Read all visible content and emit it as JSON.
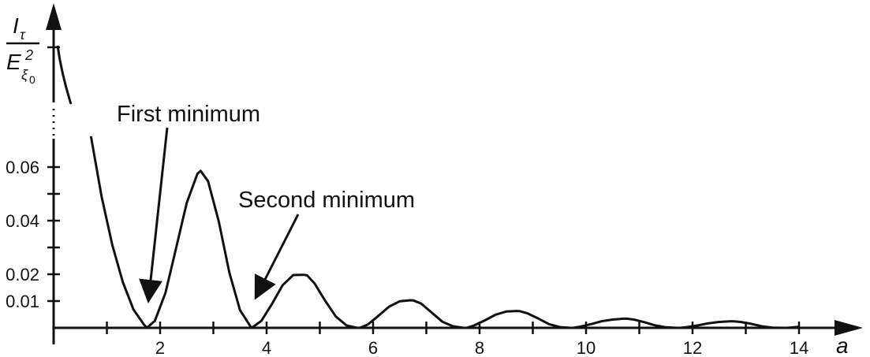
{
  "chart_data": {
    "type": "line",
    "xlabel": "a",
    "ylabel": {
      "numerator": "I",
      "numerator_sub": "τ",
      "denominator": "E",
      "denominator_sup": "2",
      "denominator_sub": "ξ",
      "denominator_sub_sub": "0"
    },
    "xlim": [
      0,
      14.4
    ],
    "ylim": [
      0,
      0.07
    ],
    "axis_break": true,
    "x_ticks": [
      1,
      2,
      3,
      4,
      5,
      6,
      7,
      8,
      9,
      10,
      11,
      12,
      13,
      14
    ],
    "x_tick_labels": [
      "2",
      "4",
      "6",
      "8",
      "10",
      "12",
      "14"
    ],
    "x_tick_label_values": [
      2,
      4,
      6,
      8,
      10,
      12,
      14
    ],
    "y_ticks": [
      0.01,
      0.02,
      0.03,
      0.04,
      0.05,
      0.06
    ],
    "y_tick_labels": [
      "0.06",
      "0.04",
      "0.02",
      "0.01"
    ],
    "y_tick_label_values": [
      0.06,
      0.04,
      0.02,
      0.01
    ],
    "grid": false,
    "series": [
      {
        "x": [
          0.7,
          0.9,
          1.1,
          1.3,
          1.5,
          1.7,
          1.75,
          1.9,
          2.1,
          2.3,
          2.5,
          2.7,
          2.76,
          2.9,
          3.1,
          3.3,
          3.5,
          3.7,
          3.72,
          3.9,
          4.1,
          4.3,
          4.5,
          4.7,
          4.76,
          4.9,
          5.1,
          5.3,
          5.5,
          5.7,
          5.75,
          5.9,
          6.1,
          6.3,
          6.5,
          6.7,
          6.76,
          6.9,
          7.1,
          7.3,
          7.5,
          7.7,
          7.76,
          7.9,
          8.1,
          8.3,
          8.5,
          8.7,
          8.76,
          8.9,
          9.1,
          9.3,
          9.5,
          9.7,
          9.76,
          9.9,
          10.1,
          10.3,
          10.5,
          10.7,
          10.77,
          10.9,
          11.1,
          11.3,
          11.5,
          11.7,
          11.77,
          11.9,
          12.1,
          12.3,
          12.5,
          12.7,
          12.78,
          12.9,
          13.1,
          13.3,
          13.5,
          13.7,
          13.78,
          13.9,
          14.0
        ],
        "y": [
          0.0715,
          0.049,
          0.031,
          0.017,
          0.0068,
          0.0011,
          0.0,
          0.0026,
          0.0131,
          0.0298,
          0.0467,
          0.0575,
          0.0586,
          0.0547,
          0.0398,
          0.0206,
          0.0066,
          0.0004,
          0.0,
          0.0026,
          0.0089,
          0.0159,
          0.0197,
          0.0198,
          0.0196,
          0.0166,
          0.0101,
          0.0042,
          0.0009,
          0.0,
          0.0,
          0.0012,
          0.0045,
          0.0079,
          0.0099,
          0.0103,
          0.0102,
          0.0091,
          0.0057,
          0.0023,
          0.0006,
          0.0,
          0.0,
          0.0009,
          0.0028,
          0.0049,
          0.0061,
          0.0063,
          0.0062,
          0.0054,
          0.0035,
          0.0014,
          0.0003,
          0.0,
          0.0,
          0.0005,
          0.0014,
          0.0025,
          0.0031,
          0.0034,
          0.0034,
          0.0031,
          0.0021,
          0.0009,
          0.0002,
          0.0,
          0.0,
          0.0003,
          0.0009,
          0.0017,
          0.0022,
          0.0024,
          0.0024,
          0.0022,
          0.0015,
          0.0006,
          0.0001,
          0.0,
          0.0,
          0.0002,
          0.0004
        ]
      }
    ],
    "annotations": [
      {
        "text": "First minimum",
        "points_to": [
          1.75,
          0.0
        ]
      },
      {
        "text": "Second minimum",
        "points_to": [
          3.72,
          0.0
        ]
      }
    ]
  }
}
